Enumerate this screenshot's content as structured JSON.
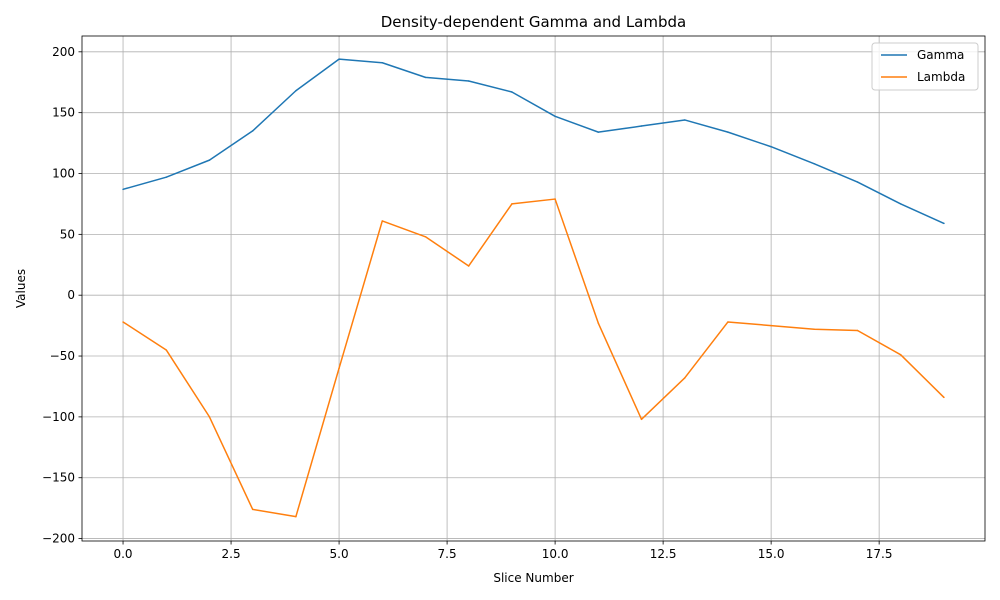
{
  "chart_data": {
    "type": "line",
    "title": "Density-dependent Gamma and Lambda",
    "xlabel": "Slice Number",
    "ylabel": "Values",
    "xlim": [
      -0.95,
      19.95
    ],
    "ylim": [
      -202,
      213
    ],
    "xticks": [
      0.0,
      2.5,
      5.0,
      7.5,
      10.0,
      12.5,
      15.0,
      17.5
    ],
    "xtick_labels": [
      "0.0",
      "2.5",
      "5.0",
      "7.5",
      "10.0",
      "12.5",
      "15.0",
      "17.5"
    ],
    "yticks": [
      -200,
      -150,
      -100,
      -50,
      0,
      50,
      100,
      150,
      200
    ],
    "ytick_labels": [
      "−200",
      "−150",
      "−100",
      "−50",
      "0",
      "50",
      "100",
      "150",
      "200"
    ],
    "grid": true,
    "legend_position": "top-right",
    "x": [
      0,
      1,
      2,
      3,
      4,
      5,
      6,
      7,
      8,
      9,
      10,
      11,
      12,
      13,
      14,
      15,
      16,
      17,
      18,
      19
    ],
    "series": [
      {
        "name": "Gamma",
        "color": "#1f77b4",
        "values": [
          87,
          97,
          111,
          135,
          168,
          194,
          191,
          179,
          176,
          167,
          147,
          134,
          139,
          144,
          134,
          122,
          108,
          93,
          75,
          59
        ]
      },
      {
        "name": "Lambda",
        "color": "#ff7f0e",
        "values": [
          -22,
          -45,
          -100,
          -176,
          -182,
          -60,
          61,
          48,
          24,
          75,
          79,
          -23,
          -102,
          -68,
          -22,
          -25,
          -28,
          -29,
          -49,
          -84
        ]
      }
    ]
  }
}
